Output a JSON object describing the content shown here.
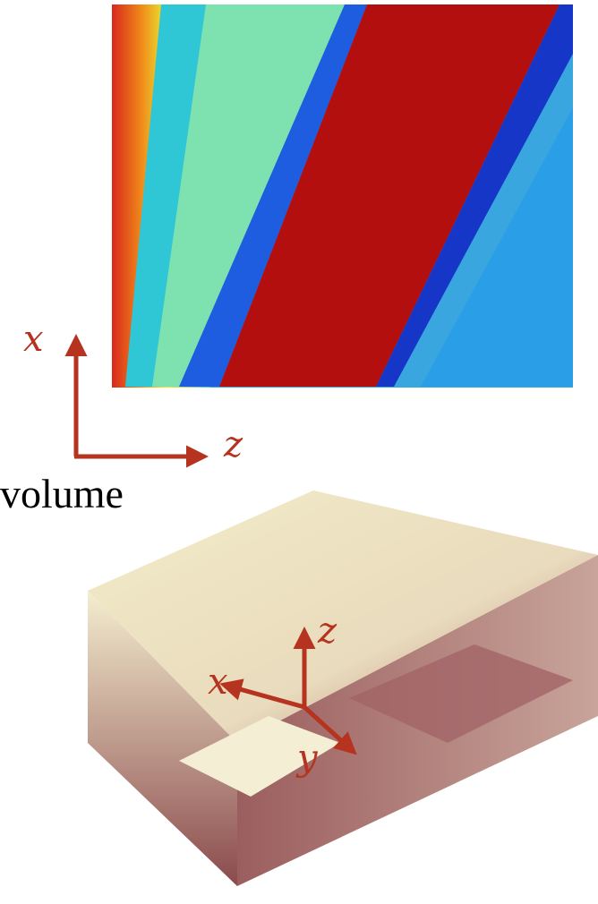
{
  "heatmap_axes": {
    "vertical": "x",
    "horizontal": "z"
  },
  "caption": "volume",
  "volume_axes": {
    "x": "x",
    "z": "z",
    "y": "y"
  }
}
